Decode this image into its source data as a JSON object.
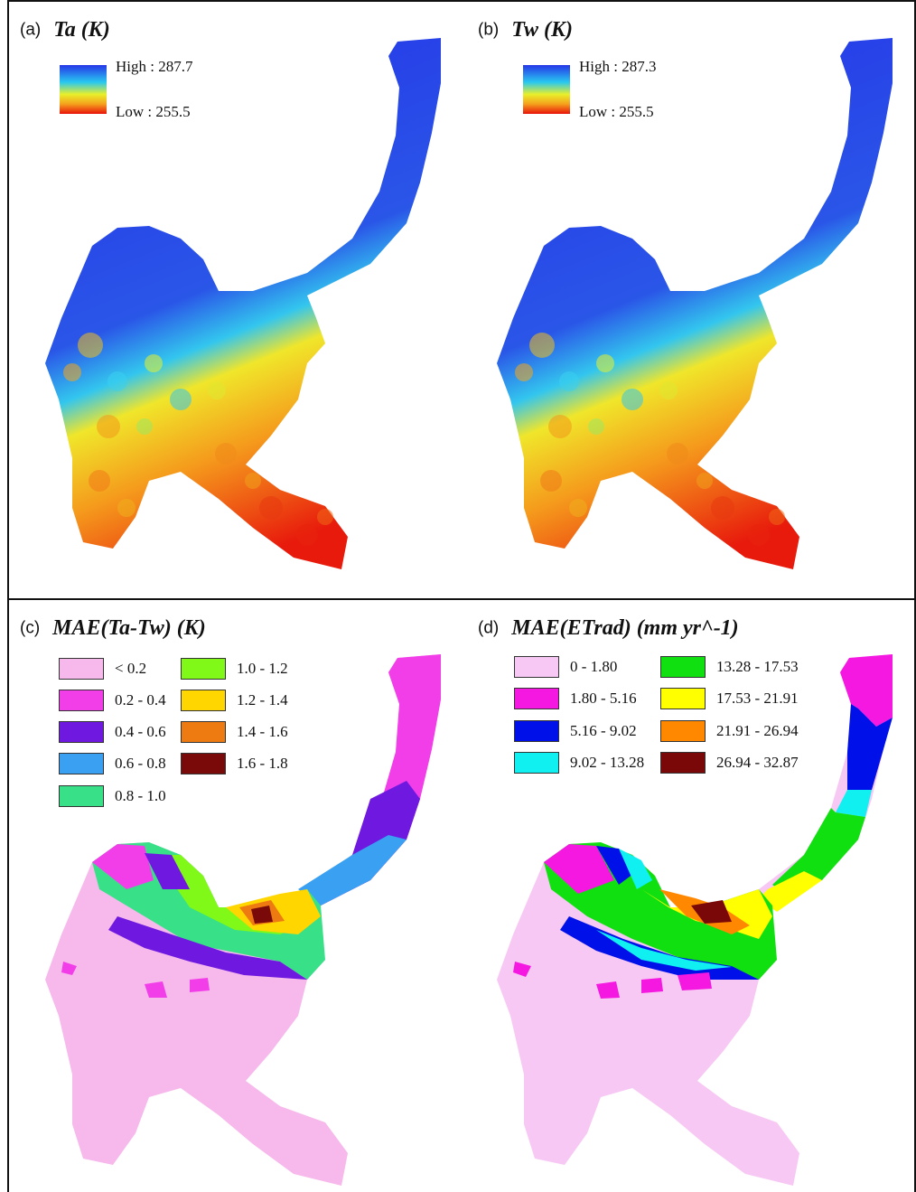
{
  "panels": {
    "a": {
      "letter": "(a)",
      "title": "Ta (K)",
      "high_label": "High : 287.7",
      "low_label": "Low : 255.5"
    },
    "b": {
      "letter": "(b)",
      "title": "Tw (K)",
      "high_label": "High : 287.3",
      "low_label": "Low : 255.5"
    },
    "c": {
      "letter": "(c)",
      "title": "MAE(Ta-Tw) (K)",
      "classes": [
        {
          "label": "< 0.2",
          "color": "#f7b8ec"
        },
        {
          "label": "0.2 - 0.4",
          "color": "#f23ee8"
        },
        {
          "label": "0.4 - 0.6",
          "color": "#6f18e0"
        },
        {
          "label": "0.6 - 0.8",
          "color": "#3aa0f2"
        },
        {
          "label": "0.8 - 1.0",
          "color": "#38e088"
        },
        {
          "label": "1.0 - 1.2",
          "color": "#80f818"
        },
        {
          "label": "1.2 - 1.4",
          "color": "#ffd600"
        },
        {
          "label": "1.4 - 1.6",
          "color": "#ee7a12"
        },
        {
          "label": "1.6 - 1.8",
          "color": "#7a0a0a"
        }
      ]
    },
    "d": {
      "letter": "(d)",
      "title": "MAE(ETrad) (mm yr^-1)",
      "classes": [
        {
          "label": "0 - 1.80",
          "color": "#f8c8f4"
        },
        {
          "label": "1.80 - 5.16",
          "color": "#f418e0"
        },
        {
          "label": "5.16 - 9.02",
          "color": "#0010e8"
        },
        {
          "label": "9.02 - 13.28",
          "color": "#10f0f0"
        },
        {
          "label": "13.28 - 17.53",
          "color": "#10e010"
        },
        {
          "label": "17.53 - 21.91",
          "color": "#ffff00"
        },
        {
          "label": "21.91 - 26.94",
          "color": "#ff8800"
        },
        {
          "label": "26.94 - 32.87",
          "color": "#7a0808"
        }
      ]
    }
  }
}
